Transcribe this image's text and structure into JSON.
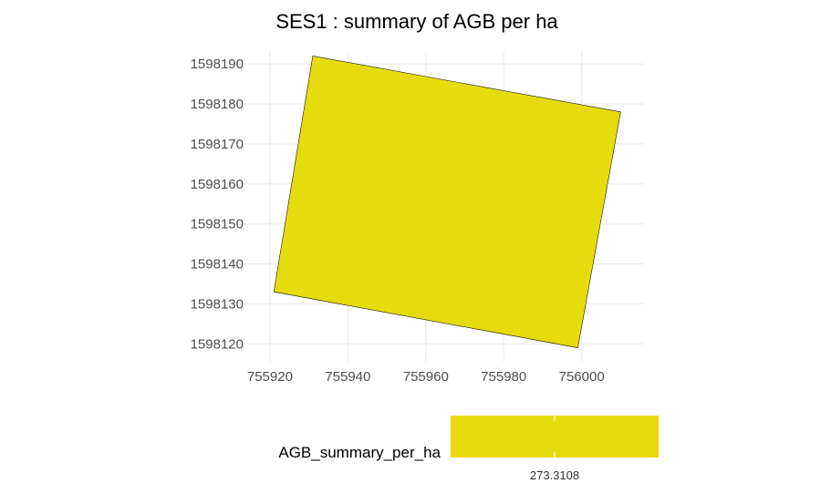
{
  "chart_data": {
    "type": "map",
    "title": "SES1 : summary of AGB per ha",
    "xlabel": "",
    "ylabel": "",
    "xlim": [
      755913,
      756016
    ],
    "ylim": [
      1598115.5,
      1598193
    ],
    "x_ticks": [
      755920,
      755940,
      755960,
      755980,
      756000
    ],
    "y_ticks": [
      1598120,
      1598130,
      1598140,
      1598150,
      1598160,
      1598170,
      1598180,
      1598190
    ],
    "grid": true,
    "polygons": [
      {
        "value": 273.3108,
        "fill": "#E6DB0C",
        "vertices": [
          [
            755931.0,
            1598192.0
          ],
          [
            756010.0,
            1598178.0
          ],
          [
            755999.0,
            1598119.0
          ],
          [
            755921.0,
            1598133.0
          ]
        ]
      }
    ],
    "legend": {
      "position": "bottom",
      "title": "AGB_summary_per_ha",
      "labels": [
        "273.3108"
      ],
      "color": "#E6DB0C"
    }
  }
}
